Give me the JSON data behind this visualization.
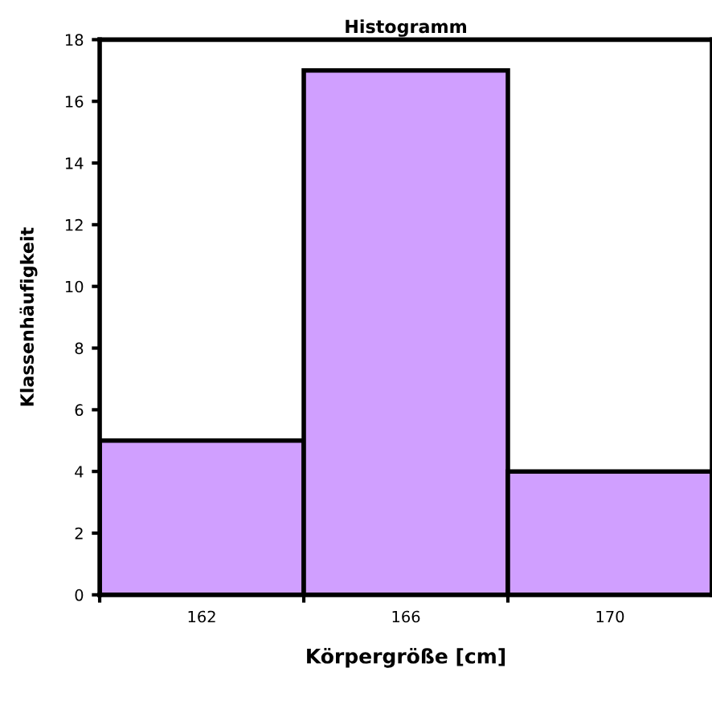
{
  "chart_data": {
    "type": "histogram",
    "title": "Histogramm",
    "xlabel": "Körpergröße [cm]",
    "ylabel": "Klassenhäufigkeit",
    "bins": [
      160,
      164,
      168,
      172
    ],
    "values": [
      5,
      17,
      4
    ],
    "color": "#d09fff",
    "xlim": [
      160,
      172
    ],
    "xticks": [
      {
        "value": 160,
        "label": null
      },
      162,
      {
        "value": 164,
        "label": null
      },
      166,
      {
        "value": 168,
        "label": null
      },
      170
    ],
    "ylim": [
      0,
      18
    ],
    "yticks": [
      0,
      2,
      4,
      6,
      8,
      10,
      12,
      14,
      16,
      18
    ],
    "grid": false,
    "legend": false
  }
}
